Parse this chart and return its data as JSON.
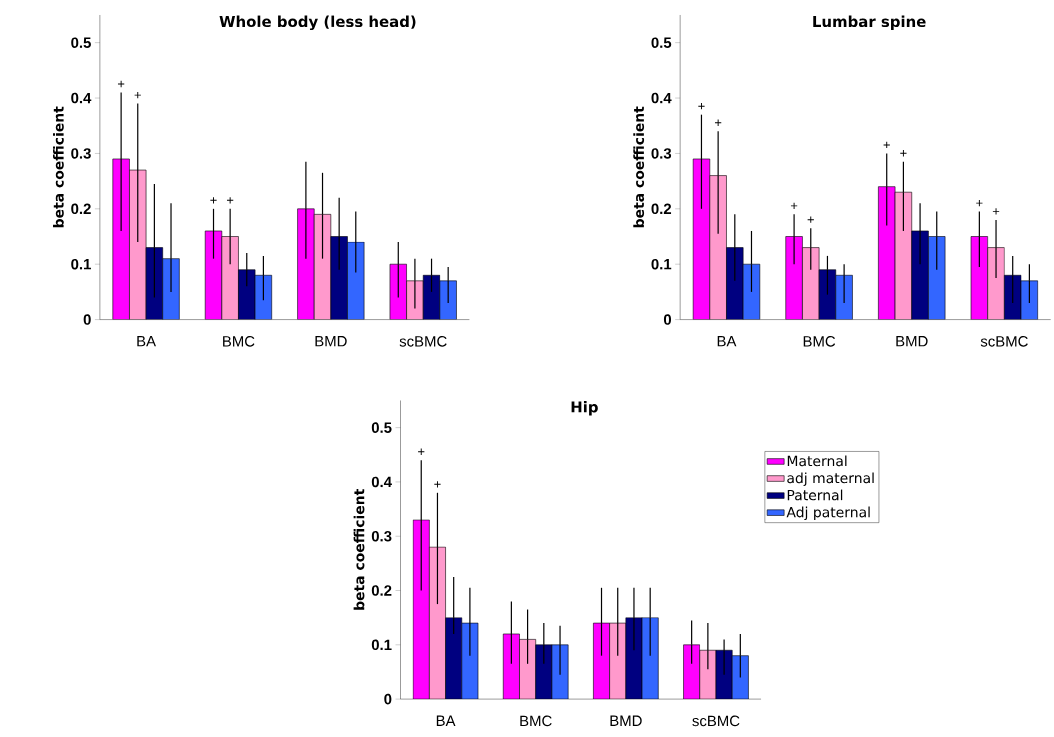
{
  "chart_data": [
    {
      "type": "bar",
      "title": "Whole body (less head)",
      "ylabel": "beta coefficient",
      "categories": [
        "BA",
        "BMC",
        "BMD",
        "scBMC"
      ],
      "ylim": [
        0,
        0.55
      ],
      "yticks": [
        0,
        0.1,
        0.2,
        0.3,
        0.4,
        0.5
      ],
      "grid": false,
      "legend": false,
      "series": [
        {
          "color": "#ff00ff",
          "values": [
            0.29,
            0.16,
            0.2,
            0.1
          ],
          "errors": [
            [
              0.16,
              0.41
            ],
            [
              0.11,
              0.2
            ],
            [
              0.11,
              0.285
            ],
            [
              0.04,
              0.14
            ]
          ]
        },
        {
          "color": "#ff99cc",
          "values": [
            0.27,
            0.15,
            0.19,
            0.07
          ],
          "errors": [
            [
              0.14,
              0.39
            ],
            [
              0.1,
              0.2
            ],
            [
              0.11,
              0.265
            ],
            [
              0.02,
              0.11
            ]
          ]
        },
        {
          "color": "#000080",
          "values": [
            0.13,
            0.09,
            0.15,
            0.08
          ],
          "errors": [
            [
              0.04,
              0.245
            ],
            [
              0.06,
              0.12
            ],
            [
              0.09,
              0.22
            ],
            [
              0.05,
              0.11
            ]
          ]
        },
        {
          "color": "#3366ff",
          "values": [
            0.11,
            0.08,
            0.14,
            0.07
          ],
          "errors": [
            [
              0.05,
              0.21
            ],
            [
              0.035,
              0.115
            ],
            [
              0.085,
              0.195
            ],
            [
              0.03,
              0.095
            ]
          ]
        }
      ],
      "annotations": [
        "+",
        "+",
        "+",
        "+"
      ]
    },
    {
      "type": "bar",
      "title": "Lumbar spine",
      "ylabel": "beta coefficient",
      "categories": [
        "BA",
        "BMC",
        "BMD",
        "scBMC"
      ],
      "ylim": [
        0,
        0.55
      ],
      "yticks": [
        0,
        0.1,
        0.2,
        0.3,
        0.4,
        0.5
      ],
      "grid": false,
      "legend": false,
      "series": [
        {
          "color": "#ff00ff",
          "values": [
            0.29,
            0.15,
            0.24,
            0.15
          ],
          "errors": [
            [
              0.2,
              0.37
            ],
            [
              0.1,
              0.19
            ],
            [
              0.17,
              0.3
            ],
            [
              0.095,
              0.195
            ]
          ]
        },
        {
          "color": "#ff99cc",
          "values": [
            0.26,
            0.13,
            0.23,
            0.13
          ],
          "errors": [
            [
              0.155,
              0.34
            ],
            [
              0.09,
              0.165
            ],
            [
              0.16,
              0.285
            ],
            [
              0.075,
              0.18
            ]
          ]
        },
        {
          "color": "#000080",
          "values": [
            0.13,
            0.09,
            0.16,
            0.08
          ],
          "errors": [
            [
              0.07,
              0.19
            ],
            [
              0.045,
              0.115
            ],
            [
              0.1,
              0.21
            ],
            [
              0.03,
              0.115
            ]
          ]
        },
        {
          "color": "#3366ff",
          "values": [
            0.1,
            0.08,
            0.15,
            0.07
          ],
          "errors": [
            [
              0.05,
              0.16
            ],
            [
              0.03,
              0.1
            ],
            [
              0.09,
              0.195
            ],
            [
              0.03,
              0.1
            ]
          ]
        }
      ],
      "annotations": [
        "+",
        "+",
        "+",
        "+",
        "+",
        "+",
        "+",
        "+"
      ]
    },
    {
      "type": "bar",
      "title": "Hip",
      "ylabel": "beta coefficient",
      "categories": [
        "BA",
        "BMC",
        "BMD",
        "scBMC"
      ],
      "ylim": [
        0,
        0.55
      ],
      "yticks": [
        0,
        0.1,
        0.2,
        0.3,
        0.4,
        0.5
      ],
      "grid": false,
      "legend": "right",
      "series": [
        {
          "name": "Maternal",
          "color": "#ff00ff",
          "values": [
            0.33,
            0.12,
            0.14,
            0.1
          ],
          "errors": [
            [
              0.2,
              0.44
            ],
            [
              0.065,
              0.18
            ],
            [
              0.08,
              0.205
            ],
            [
              0.065,
              0.145
            ]
          ]
        },
        {
          "name": "adj maternal",
          "color": "#ff99cc",
          "values": [
            0.28,
            0.11,
            0.14,
            0.09
          ],
          "errors": [
            [
              0.175,
              0.38
            ],
            [
              0.065,
              0.165
            ],
            [
              0.08,
              0.205
            ],
            [
              0.055,
              0.14
            ]
          ]
        },
        {
          "name": "Paternal",
          "color": "#000080",
          "values": [
            0.15,
            0.1,
            0.15,
            0.09
          ],
          "errors": [
            [
              0.12,
              0.225
            ],
            [
              0.065,
              0.14
            ],
            [
              0.09,
              0.205
            ],
            [
              0.045,
              0.11
            ]
          ]
        },
        {
          "name": "Adj paternal",
          "color": "#3366ff",
          "values": [
            0.14,
            0.1,
            0.15,
            0.08
          ],
          "errors": [
            [
              0.08,
              0.205
            ],
            [
              0.045,
              0.135
            ],
            [
              0.08,
              0.205
            ],
            [
              0.04,
              0.12
            ]
          ]
        }
      ],
      "annotations": [
        "+",
        "+"
      ]
    }
  ]
}
